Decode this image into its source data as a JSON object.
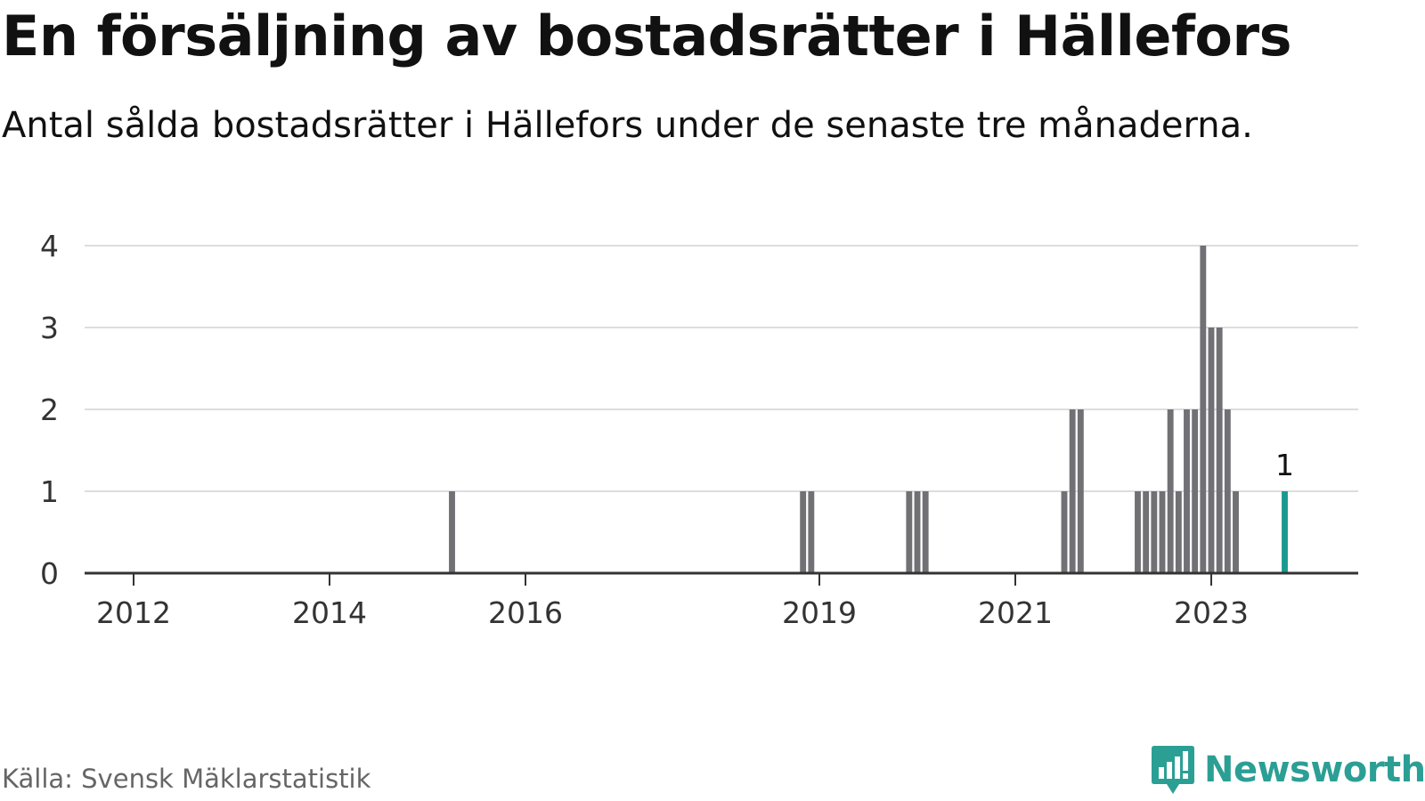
{
  "title": "En försäljning av bostadsrätter i Hällefors",
  "subtitle": "Antal sålda bostadsrätter i Hällefors under de senaste tre månaderna.",
  "source": "Källa: Svensk Mäklarstatistik",
  "brand": {
    "name": "Newsworthy",
    "icon": "newsworthy-logo-icon",
    "color": "#2c9f95"
  },
  "colors": {
    "bar": "#707075",
    "highlight": "#1a9a8f",
    "grid": "#dddddd",
    "axis": "#333333"
  },
  "chart_data": {
    "type": "bar",
    "title": "En försäljning av bostadsrätter i Hällefors",
    "xlabel": "",
    "ylabel": "",
    "ylim": [
      0,
      4
    ],
    "yticks": [
      0,
      1,
      2,
      3,
      4
    ],
    "xlim": [
      "2011-07",
      "2024-07"
    ],
    "xticks": [
      {
        "label": "2012",
        "x": "2012-01"
      },
      {
        "label": "2014",
        "x": "2014-01"
      },
      {
        "label": "2016",
        "x": "2016-01"
      },
      {
        "label": "2019",
        "x": "2019-01"
      },
      {
        "label": "2021",
        "x": "2021-01"
      },
      {
        "label": "2023",
        "x": "2023-01"
      }
    ],
    "grid": true,
    "annotation": {
      "x": "2023-10",
      "text": "1"
    },
    "series": [
      {
        "values": [
          {
            "x": "2015-04",
            "y": 1
          },
          {
            "x": "2018-11",
            "y": 1
          },
          {
            "x": "2018-12",
            "y": 1
          },
          {
            "x": "2019-12",
            "y": 1
          },
          {
            "x": "2020-01",
            "y": 1
          },
          {
            "x": "2020-02",
            "y": 1
          },
          {
            "x": "2021-07",
            "y": 1
          },
          {
            "x": "2021-08",
            "y": 2
          },
          {
            "x": "2021-09",
            "y": 2
          },
          {
            "x": "2022-04",
            "y": 1
          },
          {
            "x": "2022-05",
            "y": 1
          },
          {
            "x": "2022-06",
            "y": 1
          },
          {
            "x": "2022-07",
            "y": 1
          },
          {
            "x": "2022-08",
            "y": 2
          },
          {
            "x": "2022-09",
            "y": 1
          },
          {
            "x": "2022-10",
            "y": 2
          },
          {
            "x": "2022-11",
            "y": 2
          },
          {
            "x": "2022-12",
            "y": 4
          },
          {
            "x": "2023-01",
            "y": 3
          },
          {
            "x": "2023-02",
            "y": 3
          },
          {
            "x": "2023-03",
            "y": 2
          },
          {
            "x": "2023-04",
            "y": 1
          },
          {
            "x": "2023-10",
            "y": 1,
            "highlight": true
          }
        ]
      }
    ]
  }
}
